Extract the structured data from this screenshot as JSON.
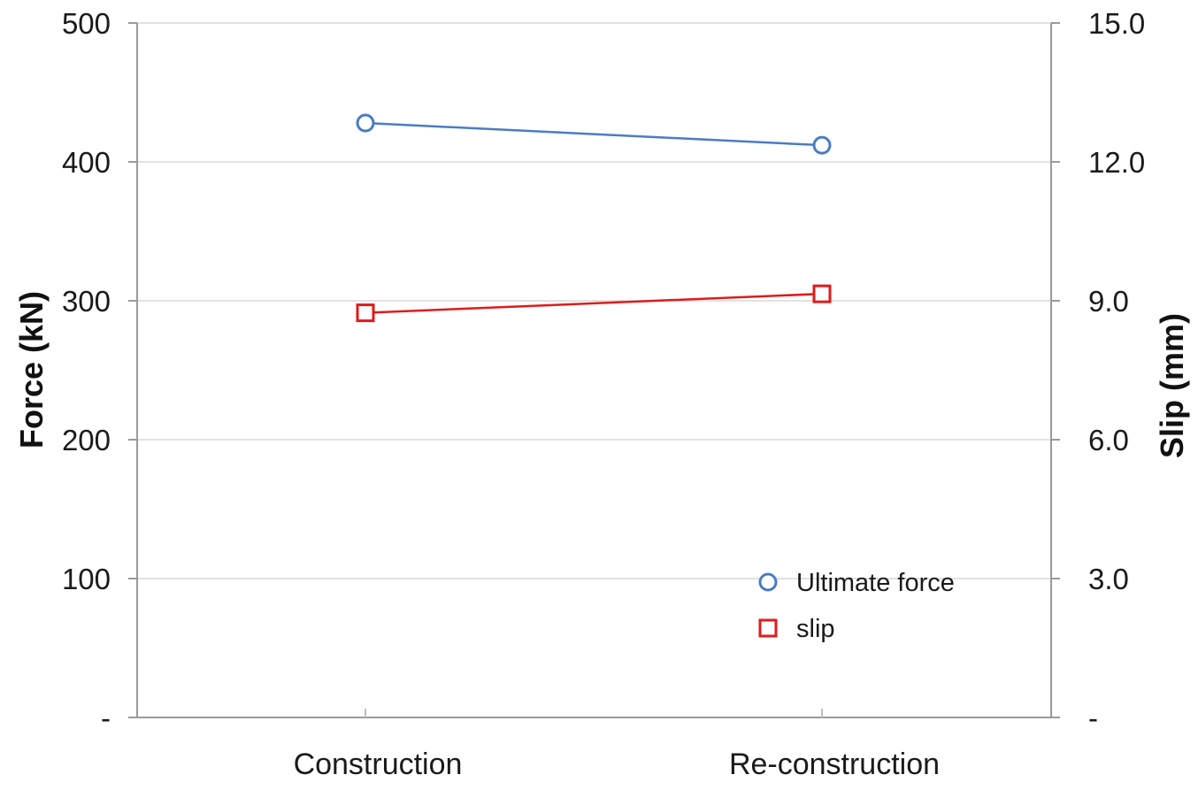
{
  "chart_data": {
    "type": "line",
    "categories": [
      "Construction",
      "Re-construction"
    ],
    "y_left": {
      "label": "Force (kN)",
      "range": [
        0,
        500
      ],
      "ticks": [
        0,
        100,
        200,
        300,
        400,
        500
      ],
      "tick_labels": [
        "-",
        "100",
        "200",
        "300",
        "400",
        "500"
      ]
    },
    "y_right": {
      "label": "Slip (mm)",
      "range": [
        0,
        15
      ],
      "ticks": [
        0,
        3,
        6,
        9,
        12,
        15
      ],
      "tick_labels": [
        "-",
        "3.0",
        "6.0",
        "9.0",
        "12.0",
        "15.0"
      ]
    },
    "series": [
      {
        "name": "Ultimate force",
        "axis": "left",
        "marker": "circle",
        "color": "#4a7cc4",
        "values": [
          428,
          412
        ]
      },
      {
        "name": "slip",
        "axis": "right",
        "marker": "square",
        "color": "#e01b1b",
        "values": [
          8.74,
          9.15
        ]
      }
    ],
    "grid": true,
    "legend_position": "bottom-right"
  }
}
